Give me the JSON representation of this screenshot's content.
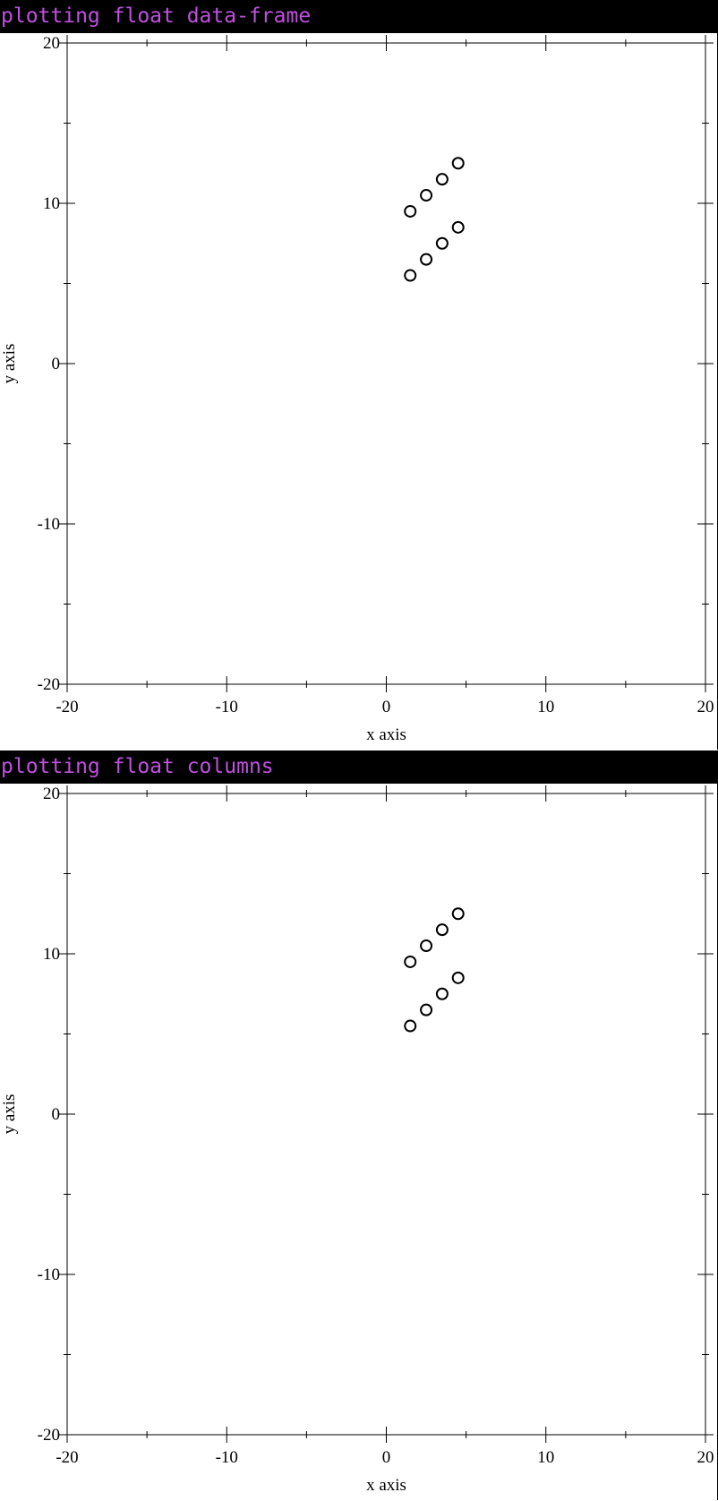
{
  "chart_data": [
    {
      "type": "scatter",
      "title": "plotting float data-frame",
      "xlabel": "x axis",
      "ylabel": "y axis",
      "xlim": [
        -20,
        20
      ],
      "ylim": [
        -20,
        20
      ],
      "x_ticks": [
        -20,
        -10,
        0,
        10,
        20
      ],
      "y_ticks": [
        -20,
        -10,
        0,
        10,
        20
      ],
      "x_tick_labels": [
        "-20",
        "-10",
        "0",
        "10",
        "20"
      ],
      "y_tick_labels": [
        "-20",
        "-10",
        "0",
        "10",
        "20"
      ],
      "points": [
        {
          "x": 1.5,
          "y": 5.5
        },
        {
          "x": 2.5,
          "y": 6.5
        },
        {
          "x": 3.5,
          "y": 7.5
        },
        {
          "x": 4.5,
          "y": 8.5
        },
        {
          "x": 1.5,
          "y": 9.5
        },
        {
          "x": 2.5,
          "y": 10.5
        },
        {
          "x": 3.5,
          "y": 11.5
        },
        {
          "x": 4.5,
          "y": 12.5
        }
      ],
      "marker": "open-circle"
    },
    {
      "type": "scatter",
      "title": "plotting float columns",
      "xlabel": "x axis",
      "ylabel": "y axis",
      "xlim": [
        -20,
        20
      ],
      "ylim": [
        -20,
        20
      ],
      "x_ticks": [
        -20,
        -10,
        0,
        10,
        20
      ],
      "y_ticks": [
        -20,
        -10,
        0,
        10,
        20
      ],
      "x_tick_labels": [
        "-20",
        "-10",
        "0",
        "10",
        "20"
      ],
      "y_tick_labels": [
        "-20",
        "-10",
        "0",
        "10",
        "20"
      ],
      "points": [
        {
          "x": 1.5,
          "y": 5.5
        },
        {
          "x": 2.5,
          "y": 6.5
        },
        {
          "x": 3.5,
          "y": 7.5
        },
        {
          "x": 4.5,
          "y": 8.5
        },
        {
          "x": 1.5,
          "y": 9.5
        },
        {
          "x": 2.5,
          "y": 10.5
        },
        {
          "x": 3.5,
          "y": 11.5
        },
        {
          "x": 4.5,
          "y": 12.5
        }
      ],
      "marker": "open-circle"
    }
  ]
}
